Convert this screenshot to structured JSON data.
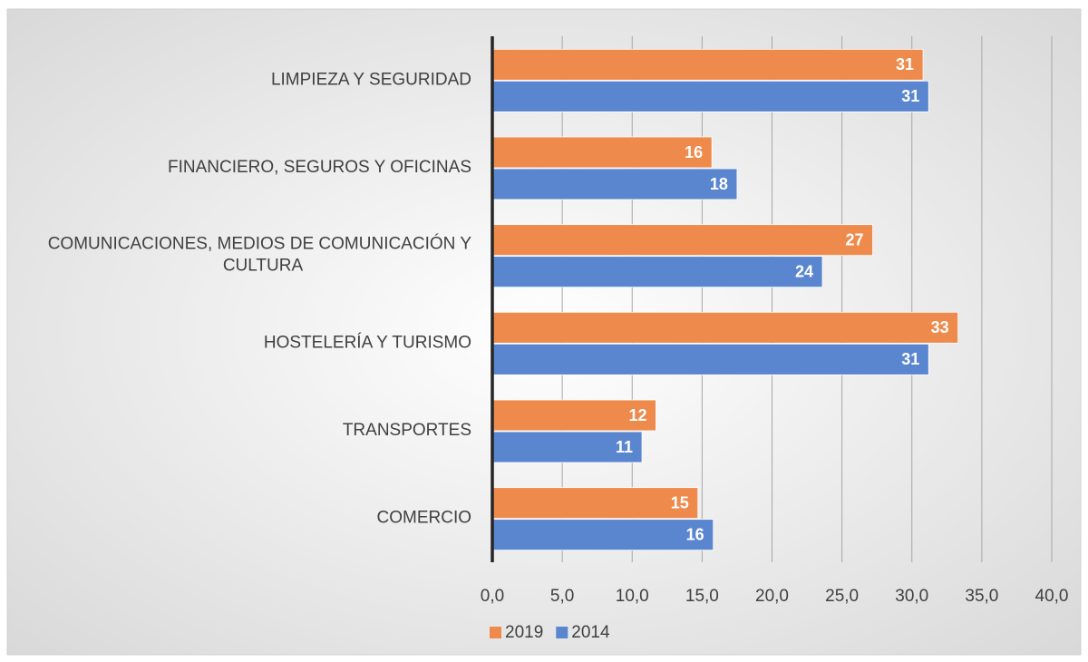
{
  "chart_data": {
    "type": "bar",
    "orientation": "horizontal",
    "categories": [
      "LIMPIEZA Y SEGURIDAD",
      "FINANCIERO, SEGUROS Y OFICINAS",
      "COMUNICACIONES, MEDIOS DE COMUNICACIÓN Y CULTURA",
      "HOSTELERÍA Y TURISMO",
      "TRANSPORTES",
      "COMERCIO"
    ],
    "series": [
      {
        "name": "2019",
        "color": "#ee8b4c",
        "values": [
          30.8,
          15.7,
          27.2,
          33.3,
          11.7,
          14.7
        ],
        "value_labels": [
          "31",
          "16",
          "27",
          "33",
          "12",
          "15"
        ]
      },
      {
        "name": "2014",
        "color": "#5a86d0",
        "values": [
          31.2,
          17.5,
          23.6,
          31.2,
          10.7,
          15.8
        ],
        "value_labels": [
          "31",
          "18",
          "24",
          "31",
          "11",
          "16"
        ]
      }
    ],
    "xlim": [
      0,
      40
    ],
    "xticks": [
      {
        "value": 0,
        "label": "0,0"
      },
      {
        "value": 5,
        "label": "5,0"
      },
      {
        "value": 10,
        "label": "10,0"
      },
      {
        "value": 15,
        "label": "15,0"
      },
      {
        "value": 20,
        "label": "20,0"
      },
      {
        "value": 25,
        "label": "25,0"
      },
      {
        "value": 30,
        "label": "30,0"
      },
      {
        "value": 35,
        "label": "35,0"
      },
      {
        "value": 40,
        "label": "40,0"
      }
    ],
    "grid": true,
    "legend": "bottom"
  }
}
